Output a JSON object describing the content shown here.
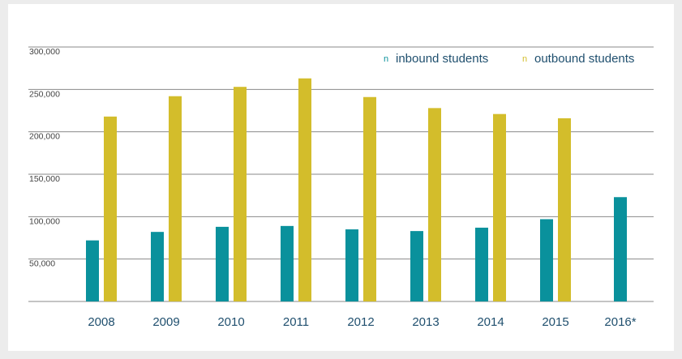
{
  "colors": {
    "inbound": "#0a919c",
    "outbound": "#d3bd2b",
    "grid": "#8a8a8a",
    "text": "#1f4f6e"
  },
  "chart_data": {
    "type": "bar",
    "categories": [
      "2008",
      "2009",
      "2010",
      "2011",
      "2012",
      "2013",
      "2014",
      "2015",
      "2016*"
    ],
    "series": [
      {
        "name": "inbound students",
        "marker": "n",
        "values": [
          72000,
          82000,
          88000,
          89000,
          85000,
          83000,
          87000,
          97000,
          123000
        ]
      },
      {
        "name": "outbound students",
        "marker": "n",
        "values": [
          218000,
          242000,
          253000,
          263000,
          241000,
          228000,
          221000,
          216000,
          null
        ]
      }
    ],
    "yticks": [
      "50,000",
      "100,000",
      "150,000",
      "200,000",
      "250,000",
      "300,000"
    ],
    "ytick_values": [
      50000,
      100000,
      150000,
      200000,
      250000,
      300000
    ],
    "ylim": [
      0,
      300000
    ],
    "grid": true,
    "legend_position": "top-right"
  }
}
